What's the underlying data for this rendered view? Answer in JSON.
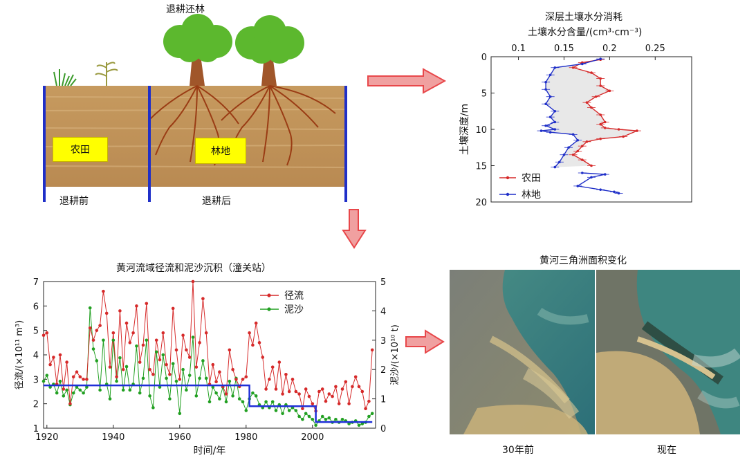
{
  "top_panel": {
    "title": "退耕还林",
    "farmland_box": "农田",
    "forest_box": "林地",
    "before_label": "退耕前",
    "after_label": "退耕后"
  },
  "moisture_chart": {
    "title": "深层土壤水分消耗",
    "xlabel": "土壤水分含量/(cm³·cm⁻³)",
    "ylabel": "土壤深度/m"
  },
  "sediment_chart": {
    "title": "黄河流域径流和泥沙沉积（潼关站）",
    "xlabel": "时间/年",
    "ylabel_left": "径流/(×10¹¹ m³)",
    "ylabel_right": "泥沙/(×10¹⁰ t)"
  },
  "delta_panel": {
    "title": "黄河三角洲面积变化",
    "left_caption": "30年前",
    "right_caption": "现在"
  },
  "colors": {
    "red": "#d62a2a",
    "blue": "#1f2fc8",
    "green": "#22a022",
    "step": "#1f2fd8",
    "arrow": "#e8474a"
  },
  "chart_data": [
    {
      "type": "line",
      "xlabel": "土壤水分含量/(cm³·cm⁻³)",
      "ylabel": "土壤深度/m",
      "xlim": [
        0.07,
        0.29
      ],
      "ylim": [
        20,
        0
      ],
      "xticks": [
        0.1,
        0.15,
        0.2,
        0.25
      ],
      "yticks": [
        0,
        5,
        10,
        15,
        20
      ],
      "legend_position": "bottom-left",
      "series": [
        {
          "name": "农田",
          "x": [
            0.19,
            0.17,
            0.16,
            0.18,
            0.19,
            0.19,
            0.2,
            0.185,
            0.175,
            0.18,
            0.19,
            0.195,
            0.19,
            0.195,
            0.21,
            0.23,
            0.215,
            0.19,
            0.175,
            0.17,
            0.165,
            0.16,
            0.17,
            0.18
          ],
          "depth": [
            0.4,
            0.8,
            1.5,
            2.2,
            3.0,
            4.0,
            4.7,
            5.5,
            6.3,
            7.0,
            8.0,
            9.0,
            9.3,
            9.8,
            10.0,
            10.2,
            11.0,
            11.3,
            11.7,
            12.3,
            13.0,
            13.5,
            14.2,
            15.0
          ]
        },
        {
          "name": "林地",
          "x": [
            0.19,
            0.17,
            0.14,
            0.135,
            0.13,
            0.13,
            0.135,
            0.13,
            0.14,
            0.135,
            0.14,
            0.13,
            0.14,
            0.125,
            0.135,
            0.16,
            0.165,
            0.155,
            0.15,
            0.145,
            0.14
          ],
          "depth": [
            0.3,
            1.0,
            1.5,
            2.5,
            3.5,
            4.5,
            5.5,
            6.5,
            7.5,
            8.3,
            9.0,
            9.5,
            10.0,
            10.2,
            10.4,
            10.7,
            11.5,
            12.5,
            13.5,
            14.5,
            15.2
          ]
        },
        {
          "name": "",
          "x": [
            0.17,
            0.195,
            0.18,
            0.165,
            0.19,
            0.205,
            0.21
          ],
          "depth": [
            16.0,
            16.2,
            16.6,
            17.8,
            18.3,
            18.6,
            18.8
          ]
        }
      ]
    },
    {
      "type": "line",
      "xlabel": "时间/年",
      "ylabel": "径流/(×10¹¹ m³)",
      "y2label": "泥沙/(×10¹⁰ t)",
      "xlim": [
        1919,
        2019
      ],
      "ylim": [
        1,
        7
      ],
      "y2lim": [
        0,
        5
      ],
      "xticks": [
        1920,
        1940,
        1960,
        1980,
        2000
      ],
      "yticks": [
        1,
        2,
        3,
        4,
        5,
        6,
        7
      ],
      "y2ticks": [
        0,
        1,
        2,
        3,
        4,
        5
      ],
      "legend_position": "top-right",
      "x": [
        1919,
        1920,
        1921,
        1922,
        1923,
        1924,
        1925,
        1926,
        1927,
        1928,
        1929,
        1930,
        1931,
        1932,
        1933,
        1934,
        1935,
        1936,
        1937,
        1938,
        1939,
        1940,
        1941,
        1942,
        1943,
        1944,
        1945,
        1946,
        1947,
        1948,
        1949,
        1950,
        1951,
        1952,
        1953,
        1954,
        1955,
        1956,
        1957,
        1958,
        1959,
        1960,
        1961,
        1962,
        1963,
        1964,
        1965,
        1966,
        1967,
        1968,
        1969,
        1970,
        1971,
        1972,
        1973,
        1974,
        1975,
        1976,
        1977,
        1978,
        1979,
        1980,
        1981,
        1982,
        1983,
        1984,
        1985,
        1986,
        1987,
        1988,
        1989,
        1990,
        1991,
        1992,
        1993,
        1994,
        1995,
        1996,
        1997,
        1998,
        1999,
        2000,
        2001,
        2002,
        2003,
        2004,
        2005,
        2006,
        2007,
        2008,
        2009,
        2010,
        2011,
        2012,
        2013,
        2014,
        2015,
        2016,
        2017,
        2018
      ],
      "series": [
        {
          "name": "径流",
          "axis": "left",
          "values": [
            4.8,
            4.9,
            3.6,
            3.9,
            2.8,
            4.0,
            2.6,
            3.7,
            2.0,
            3.1,
            3.3,
            3.1,
            3.0,
            3.0,
            5.1,
            4.6,
            5.0,
            5.2,
            6.6,
            5.7,
            3.5,
            4.9,
            3.1,
            5.8,
            3.4,
            5.3,
            4.5,
            4.9,
            6.0,
            3.7,
            4.4,
            6.1,
            3.4,
            3.2,
            4.6,
            3.8,
            4.9,
            3.6,
            3.2,
            5.9,
            4.2,
            3.0,
            4.8,
            4.2,
            3.9,
            7.0,
            3.5,
            4.5,
            6.3,
            4.9,
            2.8,
            3.6,
            2.9,
            3.3,
            2.7,
            2.4,
            4.2,
            3.4,
            3.0,
            2.7,
            3.0,
            3.1,
            4.9,
            4.4,
            5.3,
            4.5,
            3.9,
            2.6,
            3.0,
            3.5,
            2.6,
            3.7,
            2.4,
            3.2,
            2.5,
            3.0,
            2.5,
            2.4,
            1.8,
            2.6,
            2.3,
            2.0,
            1.7,
            2.5,
            2.6,
            2.1,
            2.4,
            2.3,
            2.7,
            2.0,
            2.6,
            2.9,
            2.0,
            2.7,
            3.1,
            2.7,
            2.5,
            1.8,
            2.1,
            4.2
          ]
        },
        {
          "name": "泥沙",
          "axis": "right",
          "values": [
            1.6,
            1.8,
            1.4,
            1.5,
            1.2,
            1.6,
            1.1,
            1.3,
            0.8,
            1.2,
            1.4,
            1.3,
            1.2,
            1.4,
            4.1,
            2.7,
            2.3,
            1.3,
            3.0,
            1.5,
            1.0,
            3.0,
            1.6,
            2.4,
            1.3,
            2.1,
            1.3,
            1.5,
            2.8,
            1.2,
            1.7,
            3.0,
            1.1,
            0.7,
            2.6,
            1.4,
            2.5,
            1.7,
            1.0,
            2.2,
            1.6,
            0.5,
            2.0,
            1.3,
            1.8,
            3.1,
            1.1,
            1.7,
            2.3,
            1.7,
            0.9,
            1.4,
            1.2,
            1.0,
            1.4,
            0.9,
            1.6,
            1.1,
            1.7,
            1.0,
            0.9,
            0.6,
            1.0,
            1.2,
            1.1,
            0.8,
            0.7,
            0.9,
            0.7,
            0.9,
            0.6,
            0.8,
            0.5,
            0.8,
            0.6,
            0.7,
            0.6,
            0.4,
            0.3,
            0.5,
            0.4,
            0.3,
            0.1,
            0.25,
            0.4,
            0.3,
            0.35,
            0.2,
            0.3,
            0.2,
            0.3,
            0.25,
            0.15,
            0.2,
            0.25,
            0.1,
            0.15,
            0.2,
            0.4,
            0.5
          ]
        },
        {
          "name": "",
          "axis": "left",
          "style": "step",
          "x": [
            1919,
            1981,
            1981,
            2001,
            2001,
            2018
          ],
          "values": [
            2.75,
            2.75,
            1.9,
            1.9,
            1.25,
            1.25
          ]
        }
      ]
    }
  ]
}
